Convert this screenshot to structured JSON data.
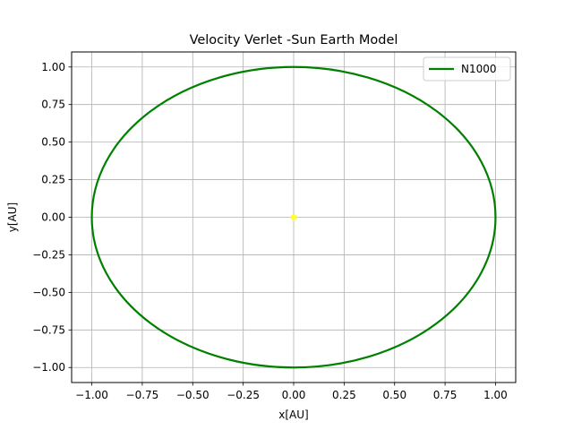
{
  "chart_data": {
    "type": "line",
    "title": "Velocity Verlet -Sun Earth Model",
    "xlabel": "x[AU]",
    "ylabel": "y[AU]",
    "xlim": [
      -1.1,
      1.1
    ],
    "ylim": [
      -1.1,
      1.1
    ],
    "xticks": [
      -1.0,
      -0.75,
      -0.5,
      -0.25,
      0.0,
      0.25,
      0.5,
      0.75,
      1.0
    ],
    "xtick_labels": [
      "−1.00",
      "−0.75",
      "−0.50",
      "−0.25",
      "0.00",
      "0.25",
      "0.50",
      "0.75",
      "1.00"
    ],
    "yticks": [
      -1.0,
      -0.75,
      -0.5,
      -0.25,
      0.0,
      0.25,
      0.5,
      0.75,
      1.0
    ],
    "ytick_labels": [
      "−1.00",
      "−0.75",
      "−0.50",
      "−0.25",
      "0.00",
      "0.25",
      "0.50",
      "0.75",
      "1.00"
    ],
    "grid": true,
    "legend_position": "top-right",
    "series": [
      {
        "name": "N1000",
        "kind": "orbit",
        "center": [
          0.0,
          0.0
        ],
        "radius": 1.0,
        "color": "#008000"
      }
    ],
    "sun": {
      "x": 0.0,
      "y": 0.0,
      "color": "#ffff33"
    }
  }
}
